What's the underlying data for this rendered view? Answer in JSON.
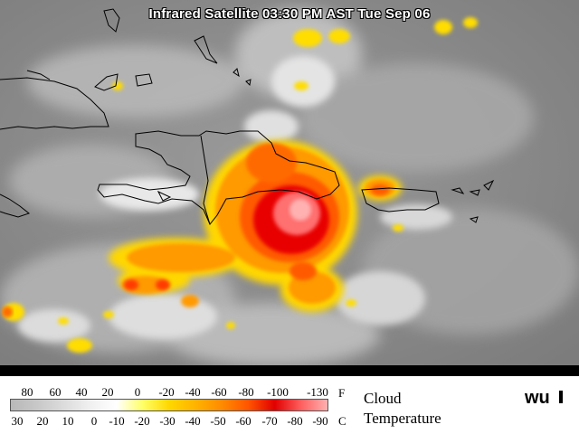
{
  "title": "Infrared Satellite 03:30 PM AST Tue Sep 06",
  "legend": {
    "f_ticks": [
      "80",
      "60",
      "40",
      "20",
      "0",
      "-20",
      "-40",
      "-60",
      "-80",
      "-100",
      "-130"
    ],
    "c_ticks": [
      "30",
      "20",
      "10",
      "0",
      "-10",
      "-20",
      "-30",
      "-40",
      "-50",
      "-60",
      "-70",
      "-80",
      "-90"
    ],
    "f_unit": "F",
    "c_unit": "C",
    "label_line1": "Cloud",
    "label_line2": "Temperature",
    "colors": [
      "#b8b8b8",
      "#c8c8c8",
      "#dcdcdc",
      "#f0f0f0",
      "#ffffff",
      "#ffff66",
      "#ffd700",
      "#ffb300",
      "#ff8a00",
      "#ff5500",
      "#e00000",
      "#ff6060",
      "#ffb0b0"
    ]
  },
  "logo": "wu-logo"
}
